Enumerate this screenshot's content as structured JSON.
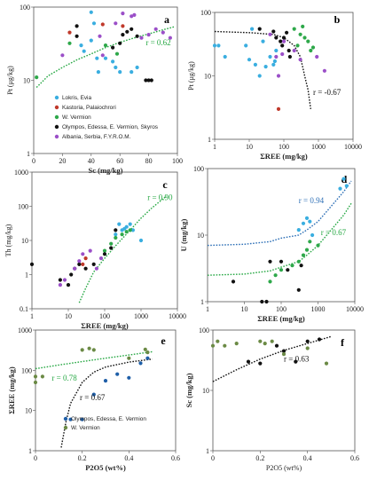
{
  "colors": {
    "Lokris, Evia": "#3aaee0",
    "Kastoria, Palaiochrori": "#c0392b",
    "W. Vermion": "#2ea84a",
    "Olympos, Edessa, E. Vermion, Skyros": "#111111",
    "Albania, Serbia, F.Y.R.O.M.": "#9b4fc8",
    "Lokris_dark": "#1f5fa8",
    "W. Vermion_olive": "#6b8a45",
    "trend_green": "#27a844",
    "trend_blue": "#2d6fb6",
    "trend_black": "#111111"
  },
  "chart_data": [
    {
      "panel": "a",
      "type": "scatter",
      "xlabel": "Sc (mg/kg)",
      "ylabel": "Pt (μg/kg)",
      "xlim": [
        0,
        100
      ],
      "ylim": [
        1,
        100
      ],
      "yscale": "log",
      "xticks": [
        {
          "v": 0,
          "t": "0"
        },
        {
          "v": 20,
          "t": "20"
        },
        {
          "v": 40,
          "t": "40"
        },
        {
          "v": 60,
          "t": "60"
        },
        {
          "v": 80,
          "t": "80"
        },
        {
          "v": 100,
          "t": "100"
        }
      ],
      "yticks": [
        {
          "v": 1,
          "t": "1"
        },
        {
          "v": 10,
          "t": "10"
        },
        {
          "v": 100,
          "t": "100"
        }
      ],
      "annotations": [
        {
          "text": "r = 0.62",
          "x": 78,
          "y": 30,
          "color": "trend_green"
        }
      ],
      "legend": [
        "Lokris, Evia",
        "Kastoria, Palaiochrori",
        "W. Vermion",
        "Olympos, Edessa, E. Vermion, Skyros",
        "Albania, Serbia, F.Y.R.O.M."
      ],
      "trend": {
        "color": "trend_green",
        "x": [
          2,
          10,
          20,
          30,
          40,
          50,
          60,
          70,
          80,
          90,
          98
        ],
        "y": [
          8,
          11.5,
          15,
          19,
          23,
          28,
          33,
          38,
          43,
          49,
          54
        ]
      },
      "series": [
        {
          "name": "Lokris, Evia",
          "x": [
            40,
            42,
            33,
            55,
            44,
            45,
            60,
            68,
            72,
            35,
            50,
            57,
            40
          ],
          "y": [
            85,
            60,
            30,
            18,
            20,
            13,
            13,
            13,
            15,
            25,
            20,
            15,
            35
          ]
        },
        {
          "name": "Kastoria, Palaiochrori",
          "x": [
            25,
            48,
            62
          ],
          "y": [
            45,
            58,
            55
          ]
        },
        {
          "name": "W. Vermion",
          "x": [
            2,
            25,
            50,
            58
          ],
          "y": [
            11,
            32,
            30,
            23
          ]
        },
        {
          "name": "Olympos, Edessa, E. Vermion, Skyros",
          "x": [
            30,
            30,
            60,
            62,
            65,
            68,
            72,
            78,
            80,
            82,
            55
          ],
          "y": [
            55,
            40,
            32,
            42,
            46,
            50,
            40,
            10,
            10,
            10,
            28
          ]
        },
        {
          "name": "Albania, Serbia, F.Y.R.O.M.",
          "x": [
            20,
            48,
            57,
            62,
            68,
            70,
            75,
            80,
            85,
            90,
            95,
            46
          ],
          "y": [
            22,
            22,
            60,
            82,
            75,
            78,
            38,
            42,
            50,
            45,
            38,
            40
          ]
        }
      ]
    },
    {
      "panel": "b",
      "type": "scatter",
      "xlabel": "ΣREE (mg/kg)",
      "ylabel": "Pt (μg/kg)",
      "xlim": [
        1,
        10000
      ],
      "ylim": [
        1,
        100
      ],
      "xscale": "log",
      "yscale": "log",
      "xticks": [
        {
          "v": 1,
          "t": "1"
        },
        {
          "v": 10,
          "t": "10"
        },
        {
          "v": 100,
          "t": "100"
        },
        {
          "v": 1000,
          "t": "1000"
        },
        {
          "v": 10000,
          "t": "10000"
        }
      ],
      "yticks": [
        {
          "v": 1,
          "t": "1"
        },
        {
          "v": 10,
          "t": "10"
        },
        {
          "v": 100,
          "t": "100"
        }
      ],
      "annotations": [
        {
          "text": "r = -0.67",
          "x": 700,
          "y": 5,
          "color": "trend_black"
        }
      ],
      "trend": {
        "color": "trend_black",
        "x": [
          1,
          10,
          50,
          100,
          200,
          300,
          400,
          500,
          600
        ],
        "y": [
          50,
          48,
          45,
          40,
          30,
          20,
          10,
          6,
          3
        ]
      },
      "series": [
        {
          "name": "Lokris, Evia",
          "x": [
            1,
            1.3,
            2,
            8,
            10,
            15,
            20,
            30,
            40,
            50,
            55,
            60,
            25,
            12
          ],
          "y": [
            30,
            30,
            20,
            30,
            18,
            15,
            10,
            14,
            20,
            15,
            17,
            25,
            35,
            55
          ]
        },
        {
          "name": "Kastoria, Palaiochrori",
          "x": [
            70
          ],
          "y": [
            3
          ]
        },
        {
          "name": "W. Vermion",
          "x": [
            200,
            250,
            300,
            350,
            400,
            500,
            600,
            700
          ],
          "y": [
            55,
            30,
            45,
            60,
            40,
            35,
            25,
            28
          ]
        },
        {
          "name": "Olympos, Edessa, E. Vermion, Skyros",
          "x": [
            20,
            50,
            60,
            80,
            90,
            100,
            120,
            140,
            150
          ],
          "y": [
            55,
            50,
            40,
            35,
            30,
            40,
            48,
            25,
            20
          ]
        },
        {
          "name": "Albania, Serbia, F.Y.R.O.M.",
          "x": [
            40,
            60,
            70,
            90,
            100,
            200,
            300,
            900,
            1500
          ],
          "y": [
            45,
            20,
            10,
            22,
            35,
            25,
            18,
            20,
            12
          ]
        }
      ]
    },
    {
      "panel": "c",
      "type": "scatter",
      "xlabel": "ΣREE (mg/kg)",
      "ylabel": "Th (mg/kg)",
      "xlim": [
        1,
        10000
      ],
      "ylim": [
        0.1,
        1000
      ],
      "xscale": "log",
      "yscale": "log",
      "xticks": [
        {
          "v": 1,
          "t": "1"
        },
        {
          "v": 10,
          "t": "10"
        },
        {
          "v": 100,
          "t": "100"
        },
        {
          "v": 1000,
          "t": "1000"
        },
        {
          "v": 10000,
          "t": "10000"
        }
      ],
      "yticks": [
        {
          "v": 0.1,
          "t": "0.1"
        },
        {
          "v": 1,
          "t": "1"
        },
        {
          "v": 10,
          "t": "10"
        },
        {
          "v": 100,
          "t": "100"
        },
        {
          "v": 1000,
          "t": "1000"
        }
      ],
      "annotations": [
        {
          "text": "r = 0.90",
          "x": 1500,
          "y": 150,
          "color": "trend_green"
        }
      ],
      "trend": {
        "color": "trend_green",
        "x": [
          20,
          30,
          50,
          100,
          200,
          500,
          1000,
          2000,
          5000
        ],
        "y": [
          0.15,
          0.4,
          1.2,
          3,
          7,
          20,
          45,
          90,
          200
        ]
      },
      "series": [
        {
          "name": "Lokris, Evia",
          "x": [
            200,
            300,
            400,
            500,
            600,
            1000,
            250,
            350
          ],
          "y": [
            15,
            20,
            25,
            30,
            20,
            10,
            30,
            22
          ]
        },
        {
          "name": "Kastoria, Palaiochrori",
          "x": [
            25,
            30
          ],
          "y": [
            2,
            3
          ]
        },
        {
          "name": "W. Vermion",
          "x": [
            100,
            150,
            200,
            300,
            400,
            500
          ],
          "y": [
            5,
            8,
            12,
            15,
            18,
            20
          ]
        },
        {
          "name": "Olympos, Edessa, E. Vermion, Skyros",
          "x": [
            1,
            6,
            10,
            12,
            15,
            20,
            30,
            50,
            100,
            150,
            200
          ],
          "y": [
            2,
            0.7,
            0.5,
            1,
            1.5,
            2,
            1.5,
            2,
            4,
            6,
            20
          ]
        },
        {
          "name": "Albania, Serbia, F.Y.R.O.M.",
          "x": [
            6,
            8,
            15,
            20,
            25,
            40,
            60,
            80
          ],
          "y": [
            0.5,
            0.7,
            1.5,
            2.5,
            4,
            5,
            1.5,
            3
          ]
        }
      ]
    },
    {
      "panel": "d",
      "type": "scatter",
      "xlabel": "ΣREE (mg/kg)",
      "ylabel": "U (mg/kg)",
      "xlim": [
        1,
        10000
      ],
      "ylim": [
        1,
        100
      ],
      "xscale": "log",
      "yscale": "log",
      "xticks": [
        {
          "v": 1,
          "t": "1"
        },
        {
          "v": 10,
          "t": "10"
        },
        {
          "v": 100,
          "t": "100"
        },
        {
          "v": 1000,
          "t": "1000"
        },
        {
          "v": 10000,
          "t": "10000"
        }
      ],
      "yticks": [
        {
          "v": 1,
          "t": "1"
        },
        {
          "v": 10,
          "t": "10"
        },
        {
          "v": 100,
          "t": "100"
        }
      ],
      "annotations": [
        {
          "text": "r = 0.94",
          "x": 300,
          "y": 30,
          "color": "trend_blue"
        },
        {
          "text": "r = 0.67",
          "x": 1200,
          "y": 10,
          "color": "trend_green"
        }
      ],
      "trend": [
        {
          "color": "trend_blue",
          "x": [
            1,
            10,
            50,
            100,
            300,
            500,
            1000,
            2000,
            5000,
            8000
          ],
          "y": [
            7,
            7.3,
            8,
            9,
            10,
            12,
            16,
            25,
            45,
            65
          ]
        },
        {
          "color": "trend_green",
          "x": [
            1,
            10,
            50,
            100,
            300,
            500,
            1000,
            2000,
            5000,
            8000
          ],
          "y": [
            2.5,
            2.6,
            2.9,
            3.3,
            4,
            5,
            7,
            11,
            20,
            30
          ]
        }
      ],
      "series": [
        {
          "name": "Lokris, Evia",
          "x": [
            300,
            400,
            500,
            600,
            4000,
            5000,
            6000,
            700
          ],
          "y": [
            12,
            15,
            18,
            16,
            50,
            70,
            55,
            10
          ]
        },
        {
          "name": "W. Vermion",
          "x": [
            50,
            70,
            100,
            200,
            300,
            400,
            500,
            600,
            1000
          ],
          "y": [
            2,
            2.5,
            3,
            3.5,
            4,
            5,
            6,
            8,
            7
          ]
        },
        {
          "name": "Olympos, Edessa, E. Vermion, Skyros",
          "x": [
            5,
            30,
            40,
            50,
            100,
            150,
            300,
            350
          ],
          "y": [
            2,
            1,
            1,
            4,
            4,
            3,
            1.5,
            3.5
          ]
        }
      ]
    },
    {
      "panel": "e",
      "type": "scatter",
      "xlabel": "P2O5 (wt%)",
      "ylabel": "ΣREE (mg/kg)",
      "xlim": [
        0,
        0.6
      ],
      "ylim": [
        1,
        1000
      ],
      "yscale": "log",
      "xticks": [
        {
          "v": 0,
          "t": "0"
        },
        {
          "v": 0.2,
          "t": "0.2"
        },
        {
          "v": 0.4,
          "t": "0.4"
        },
        {
          "v": 0.6,
          "t": "0.6"
        }
      ],
      "yticks": [
        {
          "v": 1,
          "t": "1"
        },
        {
          "v": 10,
          "t": "10"
        },
        {
          "v": 100,
          "t": "100"
        },
        {
          "v": 1000,
          "t": "1000"
        }
      ],
      "annotations": [
        {
          "text": "r = 0.78",
          "x": 0.07,
          "y": 55,
          "color": "trend_green"
        },
        {
          "text": "r = 0.67",
          "x": 0.19,
          "y": 18,
          "color": "trend_black"
        }
      ],
      "legend": [
        "Olympos, Edessa, E. Vermion",
        "W. Vermion"
      ],
      "trend": [
        {
          "color": "trend_green",
          "x": [
            0,
            0.1,
            0.2,
            0.3,
            0.4,
            0.5
          ],
          "y": [
            110,
            135,
            165,
            200,
            240,
            290
          ]
        },
        {
          "color": "trend_black",
          "x": [
            0.11,
            0.13,
            0.15,
            0.2,
            0.25,
            0.3,
            0.4,
            0.5
          ],
          "y": [
            1.2,
            5,
            15,
            50,
            90,
            120,
            160,
            190
          ]
        }
      ],
      "series": [
        {
          "name": "Olympos, Edessa, E. Vermion",
          "x": [
            0.15,
            0.2,
            0.25,
            0.3,
            0.35,
            0.4,
            0.45,
            0.48
          ],
          "y": [
            6,
            6,
            25,
            55,
            80,
            65,
            150,
            200
          ]
        },
        {
          "name": "W. Vermion",
          "x": [
            0,
            0,
            0.03,
            0.2,
            0.23,
            0.25,
            0.4,
            0.48,
            0.47
          ],
          "y": [
            50,
            70,
            70,
            320,
            350,
            320,
            200,
            280,
            330
          ]
        }
      ]
    },
    {
      "panel": "f",
      "type": "scatter",
      "xlabel": "P2O5 (wt%)",
      "ylabel": "Sc (mg/kg)",
      "xlim": [
        0,
        0.6
      ],
      "ylim": [
        1,
        100
      ],
      "yscale": "log",
      "xticks": [
        {
          "v": 0,
          "t": "0"
        },
        {
          "v": 0.2,
          "t": "0.2"
        },
        {
          "v": 0.4,
          "t": "0.4"
        },
        {
          "v": 0.6,
          "t": "0.6"
        }
      ],
      "yticks": [
        {
          "v": 1,
          "t": "1"
        },
        {
          "v": 10,
          "t": "10"
        },
        {
          "v": 100,
          "t": "100"
        }
      ],
      "annotations": [
        {
          "text": "r = 0.63",
          "x": 0.3,
          "y": 30,
          "color": "trend_black"
        }
      ],
      "trend": {
        "color": "trend_black",
        "x": [
          0,
          0.1,
          0.2,
          0.3,
          0.4,
          0.5
        ],
        "y": [
          14,
          22,
          33,
          46,
          60,
          78
        ]
      },
      "series": [
        {
          "name": "Olympos, Edessa, E. Vermion",
          "x": [
            0.15,
            0.2,
            0.27,
            0.3,
            0.35,
            0.4,
            0.45
          ],
          "y": [
            30,
            28,
            55,
            45,
            30,
            65,
            70
          ]
        },
        {
          "name": "W. Vermion",
          "x": [
            0,
            0.02,
            0.05,
            0.1,
            0.2,
            0.22,
            0.25,
            0.3,
            0.4,
            0.48
          ],
          "y": [
            55,
            65,
            55,
            60,
            65,
            60,
            65,
            40,
            50,
            28
          ]
        }
      ]
    }
  ]
}
